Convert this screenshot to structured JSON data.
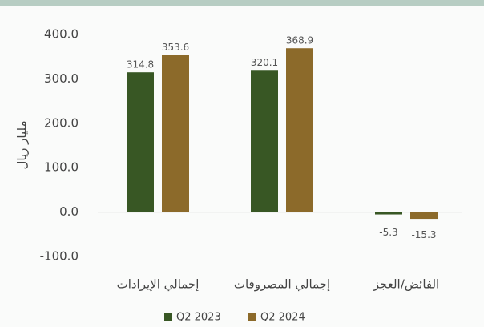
{
  "chart_data": {
    "type": "bar",
    "y_label": "مليار ريال",
    "categories": [
      "إجمالي الإيرادات",
      "إجمالي المصروفات",
      "الفائض/العجز"
    ],
    "series": [
      {
        "name": "Q2 2023",
        "color": "#385724",
        "values": [
          314.8,
          320.1,
          -5.3
        ]
      },
      {
        "name": "Q2 2024",
        "color": "#8c6a2a",
        "values": [
          353.6,
          368.9,
          -15.3
        ]
      }
    ],
    "ylim": [
      -100,
      400
    ],
    "yticks": [
      {
        "value": -100,
        "label": "-100.0"
      },
      {
        "value": 0,
        "label": "0.0"
      },
      {
        "value": 100,
        "label": "100.0"
      },
      {
        "value": 200,
        "label": "200.0"
      },
      {
        "value": 300,
        "label": "300.0"
      },
      {
        "value": 400,
        "label": "400.0"
      }
    ],
    "grid": false
  }
}
